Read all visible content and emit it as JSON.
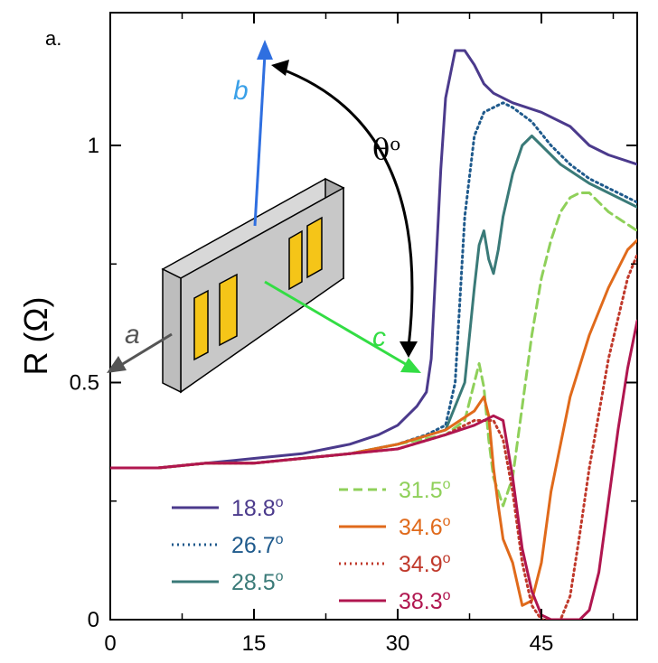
{
  "panel_label": "a.",
  "inset": {
    "axis_a": "a",
    "axis_b": "b",
    "axis_c": "c",
    "angle_label": "θ",
    "angle_sup": "o",
    "colors": {
      "a": "#555555",
      "b": "#2f6fe0",
      "c": "#33dd44",
      "crystal": "#c8c8c8",
      "contacts": "#f5c518"
    }
  },
  "chart_data": {
    "type": "line",
    "title": "",
    "xlabel": "",
    "ylabel": "R (Ω)",
    "xlim": [
      0,
      55
    ],
    "ylim": [
      0,
      1.28
    ],
    "xticks": [
      "0",
      "15",
      "30",
      "45"
    ],
    "yticks": [
      "0",
      "0.5",
      "1"
    ],
    "x_tick_values": [
      0,
      15,
      30,
      45
    ],
    "y_tick_values": [
      0,
      0.5,
      1
    ],
    "grid": false,
    "legend_position": "bottom",
    "series": [
      {
        "name": "18.8",
        "color": "#4b3a8c",
        "dash": "solid",
        "x": [
          0,
          5,
          10,
          15,
          20,
          25,
          28,
          30,
          31,
          32,
          33,
          33.5,
          34,
          34.5,
          35,
          36,
          37,
          38,
          39,
          40,
          42,
          45,
          48,
          50,
          52,
          55
        ],
        "y": [
          0.32,
          0.32,
          0.33,
          0.34,
          0.35,
          0.37,
          0.39,
          0.41,
          0.43,
          0.45,
          0.48,
          0.55,
          0.75,
          0.95,
          1.1,
          1.2,
          1.2,
          1.17,
          1.13,
          1.11,
          1.09,
          1.07,
          1.04,
          1.0,
          0.98,
          0.96
        ]
      },
      {
        "name": "26.7",
        "color": "#1f5a8c",
        "dash": "dotted",
        "x": [
          0,
          5,
          10,
          15,
          20,
          25,
          30,
          33,
          35,
          36,
          37,
          38,
          39,
          40,
          41,
          42,
          44,
          46,
          48,
          50,
          52,
          55
        ],
        "y": [
          0.32,
          0.32,
          0.33,
          0.33,
          0.34,
          0.35,
          0.37,
          0.39,
          0.41,
          0.5,
          0.85,
          1.02,
          1.07,
          1.08,
          1.09,
          1.08,
          1.05,
          1.0,
          0.96,
          0.93,
          0.91,
          0.88
        ]
      },
      {
        "name": "28.5",
        "color": "#3a7a78",
        "dash": "solid",
        "x": [
          0,
          5,
          10,
          15,
          20,
          25,
          30,
          35,
          37,
          38,
          38.5,
          39,
          39.5,
          40,
          40.5,
          41,
          42,
          43,
          44,
          45,
          47,
          50,
          52,
          55
        ],
        "y": [
          0.32,
          0.32,
          0.33,
          0.33,
          0.34,
          0.35,
          0.37,
          0.4,
          0.5,
          0.7,
          0.79,
          0.82,
          0.76,
          0.73,
          0.78,
          0.85,
          0.94,
          1.0,
          1.02,
          1.0,
          0.96,
          0.92,
          0.9,
          0.87
        ]
      },
      {
        "name": "31.5",
        "color": "#8fd05a",
        "dash": "dashed",
        "x": [
          0,
          5,
          10,
          15,
          20,
          25,
          30,
          35,
          37,
          38,
          38.5,
          39,
          39.5,
          40,
          41,
          42,
          43,
          44,
          45,
          46,
          47,
          48,
          49,
          50,
          52,
          55
        ],
        "y": [
          0.32,
          0.32,
          0.33,
          0.33,
          0.34,
          0.35,
          0.37,
          0.39,
          0.42,
          0.5,
          0.54,
          0.49,
          0.38,
          0.3,
          0.24,
          0.3,
          0.45,
          0.6,
          0.72,
          0.8,
          0.86,
          0.89,
          0.9,
          0.9,
          0.86,
          0.82
        ]
      },
      {
        "name": "34.6",
        "color": "#e06a1b",
        "dash": "solid",
        "x": [
          0,
          5,
          10,
          15,
          20,
          25,
          30,
          35,
          38,
          39,
          39.5,
          40,
          40.5,
          41,
          42,
          43,
          44,
          45,
          46,
          48,
          50,
          52,
          54,
          55
        ],
        "y": [
          0.32,
          0.32,
          0.33,
          0.33,
          0.34,
          0.35,
          0.37,
          0.4,
          0.44,
          0.47,
          0.43,
          0.32,
          0.24,
          0.17,
          0.12,
          0.03,
          0.04,
          0.12,
          0.27,
          0.47,
          0.6,
          0.7,
          0.78,
          0.8
        ]
      },
      {
        "name": "34.9",
        "color": "#c0392b",
        "dash": "dotted",
        "x": [
          0,
          5,
          10,
          15,
          20,
          25,
          30,
          35,
          38,
          40,
          41,
          42,
          43,
          44,
          45,
          46,
          47,
          48,
          49,
          50,
          52,
          54,
          55
        ],
        "y": [
          0.32,
          0.32,
          0.33,
          0.33,
          0.34,
          0.35,
          0.36,
          0.39,
          0.42,
          0.42,
          0.38,
          0.27,
          0.12,
          0.03,
          0.0,
          0.0,
          0.0,
          0.05,
          0.18,
          0.32,
          0.55,
          0.72,
          0.77
        ]
      },
      {
        "name": "38.3",
        "color": "#b0164f",
        "dash": "solid",
        "x": [
          0,
          5,
          10,
          15,
          20,
          25,
          30,
          35,
          38,
          40,
          41,
          42,
          43,
          44,
          45,
          46,
          47,
          48,
          49,
          50,
          51,
          52,
          53,
          54,
          55
        ],
        "y": [
          0.32,
          0.32,
          0.33,
          0.33,
          0.34,
          0.35,
          0.36,
          0.39,
          0.41,
          0.43,
          0.42,
          0.3,
          0.15,
          0.06,
          0.01,
          0.0,
          0.0,
          0.0,
          0.0,
          0.02,
          0.1,
          0.25,
          0.4,
          0.53,
          0.63
        ]
      }
    ],
    "legend_sup": "o"
  }
}
